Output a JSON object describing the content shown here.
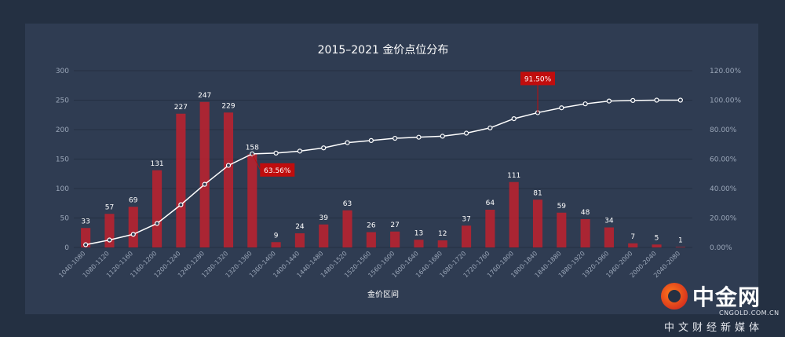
{
  "chart_data": {
    "type": "bar+line",
    "title": "2015–2021 金价点位分布",
    "xlabel": "金价区间",
    "categories": [
      "1040-1080",
      "1080-1120",
      "1120-1160",
      "1160-1200",
      "1200-1240",
      "1240-1280",
      "1280-1320",
      "1320-1360",
      "1360-1400",
      "1400-1440",
      "1440-1480",
      "1480-1520",
      "1520-1560",
      "1560-1600",
      "1600-1640",
      "1640-1680",
      "1680-1720",
      "1720-1760",
      "1760-1800",
      "1800-1840",
      "1840-1880",
      "1880-1920",
      "1920-1960",
      "1960-2000",
      "2000-2040",
      "2040-2080"
    ],
    "bar_values": [
      33,
      57,
      69,
      131,
      227,
      247,
      229,
      158,
      9,
      24,
      39,
      63,
      26,
      27,
      13,
      12,
      37,
      64,
      111,
      81,
      59,
      48,
      34,
      7,
      5,
      1
    ],
    "cumulative_pct": [
      1.85,
      5.05,
      8.92,
      16.27,
      29.0,
      42.85,
      55.69,
      63.56,
      64.06,
      65.41,
      67.6,
      71.14,
      72.6,
      74.11,
      74.84,
      75.52,
      77.59,
      81.18,
      87.41,
      91.5,
      94.81,
      97.5,
      99.41,
      99.8,
      100.0,
      100.0
    ],
    "y_left": {
      "min": 0,
      "max": 300,
      "ticks": [
        "0",
        "50",
        "100",
        "150",
        "200",
        "250",
        "300"
      ]
    },
    "y_right": {
      "min": 0,
      "max": 120,
      "ticks": [
        "0.00%",
        "20.00%",
        "40.00%",
        "60.00%",
        "80.00%",
        "100.00%",
        "120.00%"
      ]
    },
    "callouts": [
      {
        "category_index": 7,
        "label": "63.56%"
      },
      {
        "category_index": 19,
        "label": "91.50%"
      }
    ],
    "grid": true,
    "colors": {
      "bar": "#c0212e",
      "line": "#ffffff",
      "callout": "#c00d0d",
      "grid": "#243042",
      "tick": "#9aa6b8",
      "text": "#ffffff"
    }
  },
  "watermark": {
    "name": "中金网",
    "domain": "CNGOLD.COM.CN",
    "slogan": "中文财经新媒体"
  }
}
